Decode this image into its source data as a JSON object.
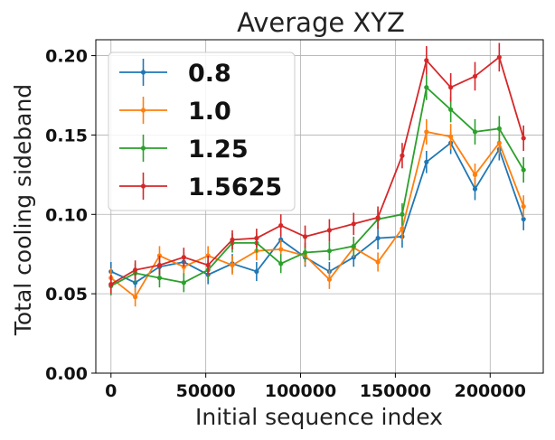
{
  "chart_data": {
    "type": "line",
    "title": "Average XYZ",
    "xlabel": "Initial sequence index",
    "ylabel": "Total cooling sideband",
    "xlim": [
      -8000,
      228000
    ],
    "ylim": [
      0.0,
      0.21
    ],
    "xticks": [
      0,
      50000,
      100000,
      150000,
      200000
    ],
    "yticks": [
      0.0,
      0.05,
      0.1,
      0.15,
      0.2
    ],
    "grid": true,
    "legend_position": "upper-left",
    "x": [
      0,
      12800,
      25600,
      38400,
      51200,
      64000,
      76800,
      89600,
      102400,
      115200,
      128000,
      140800,
      153600,
      166400,
      179200,
      192000,
      204800,
      217600
    ],
    "series": [
      {
        "name": "0.8",
        "color": "#1f77b4",
        "values": [
          0.064,
          0.057,
          0.067,
          0.07,
          0.062,
          0.069,
          0.064,
          0.084,
          0.073,
          0.064,
          0.073,
          0.085,
          0.086,
          0.133,
          0.145,
          0.116,
          0.141,
          0.097
        ],
        "errors": [
          0.006,
          0.006,
          0.006,
          0.006,
          0.006,
          0.006,
          0.006,
          0.007,
          0.006,
          0.006,
          0.006,
          0.007,
          0.007,
          0.007,
          0.007,
          0.007,
          0.007,
          0.007
        ]
      },
      {
        "name": "1.0",
        "color": "#ff7f0e",
        "values": [
          0.06,
          0.048,
          0.074,
          0.067,
          0.074,
          0.068,
          0.077,
          0.078,
          0.074,
          0.059,
          0.079,
          0.07,
          0.091,
          0.152,
          0.149,
          0.125,
          0.145,
          0.105
        ],
        "errors": [
          0.006,
          0.006,
          0.006,
          0.006,
          0.006,
          0.006,
          0.006,
          0.006,
          0.006,
          0.006,
          0.006,
          0.006,
          0.007,
          0.008,
          0.008,
          0.007,
          0.007,
          0.007
        ]
      },
      {
        "name": "1.25",
        "color": "#2ca02c",
        "values": [
          0.055,
          0.063,
          0.06,
          0.057,
          0.065,
          0.082,
          0.082,
          0.069,
          0.076,
          0.077,
          0.08,
          0.097,
          0.1,
          0.18,
          0.166,
          0.152,
          0.154,
          0.128
        ],
        "errors": [
          0.006,
          0.006,
          0.006,
          0.006,
          0.006,
          0.006,
          0.006,
          0.006,
          0.006,
          0.006,
          0.006,
          0.006,
          0.007,
          0.008,
          0.008,
          0.008,
          0.008,
          0.008
        ]
      },
      {
        "name": "1.5625",
        "color": "#d62728",
        "values": [
          0.056,
          0.065,
          0.068,
          0.073,
          0.068,
          0.084,
          0.085,
          0.093,
          0.086,
          0.09,
          0.094,
          0.098,
          0.137,
          0.197,
          0.18,
          0.187,
          0.199,
          0.148
        ],
        "errors": [
          0.006,
          0.006,
          0.006,
          0.006,
          0.006,
          0.006,
          0.006,
          0.007,
          0.007,
          0.007,
          0.007,
          0.007,
          0.008,
          0.009,
          0.009,
          0.009,
          0.009,
          0.008
        ]
      }
    ]
  }
}
